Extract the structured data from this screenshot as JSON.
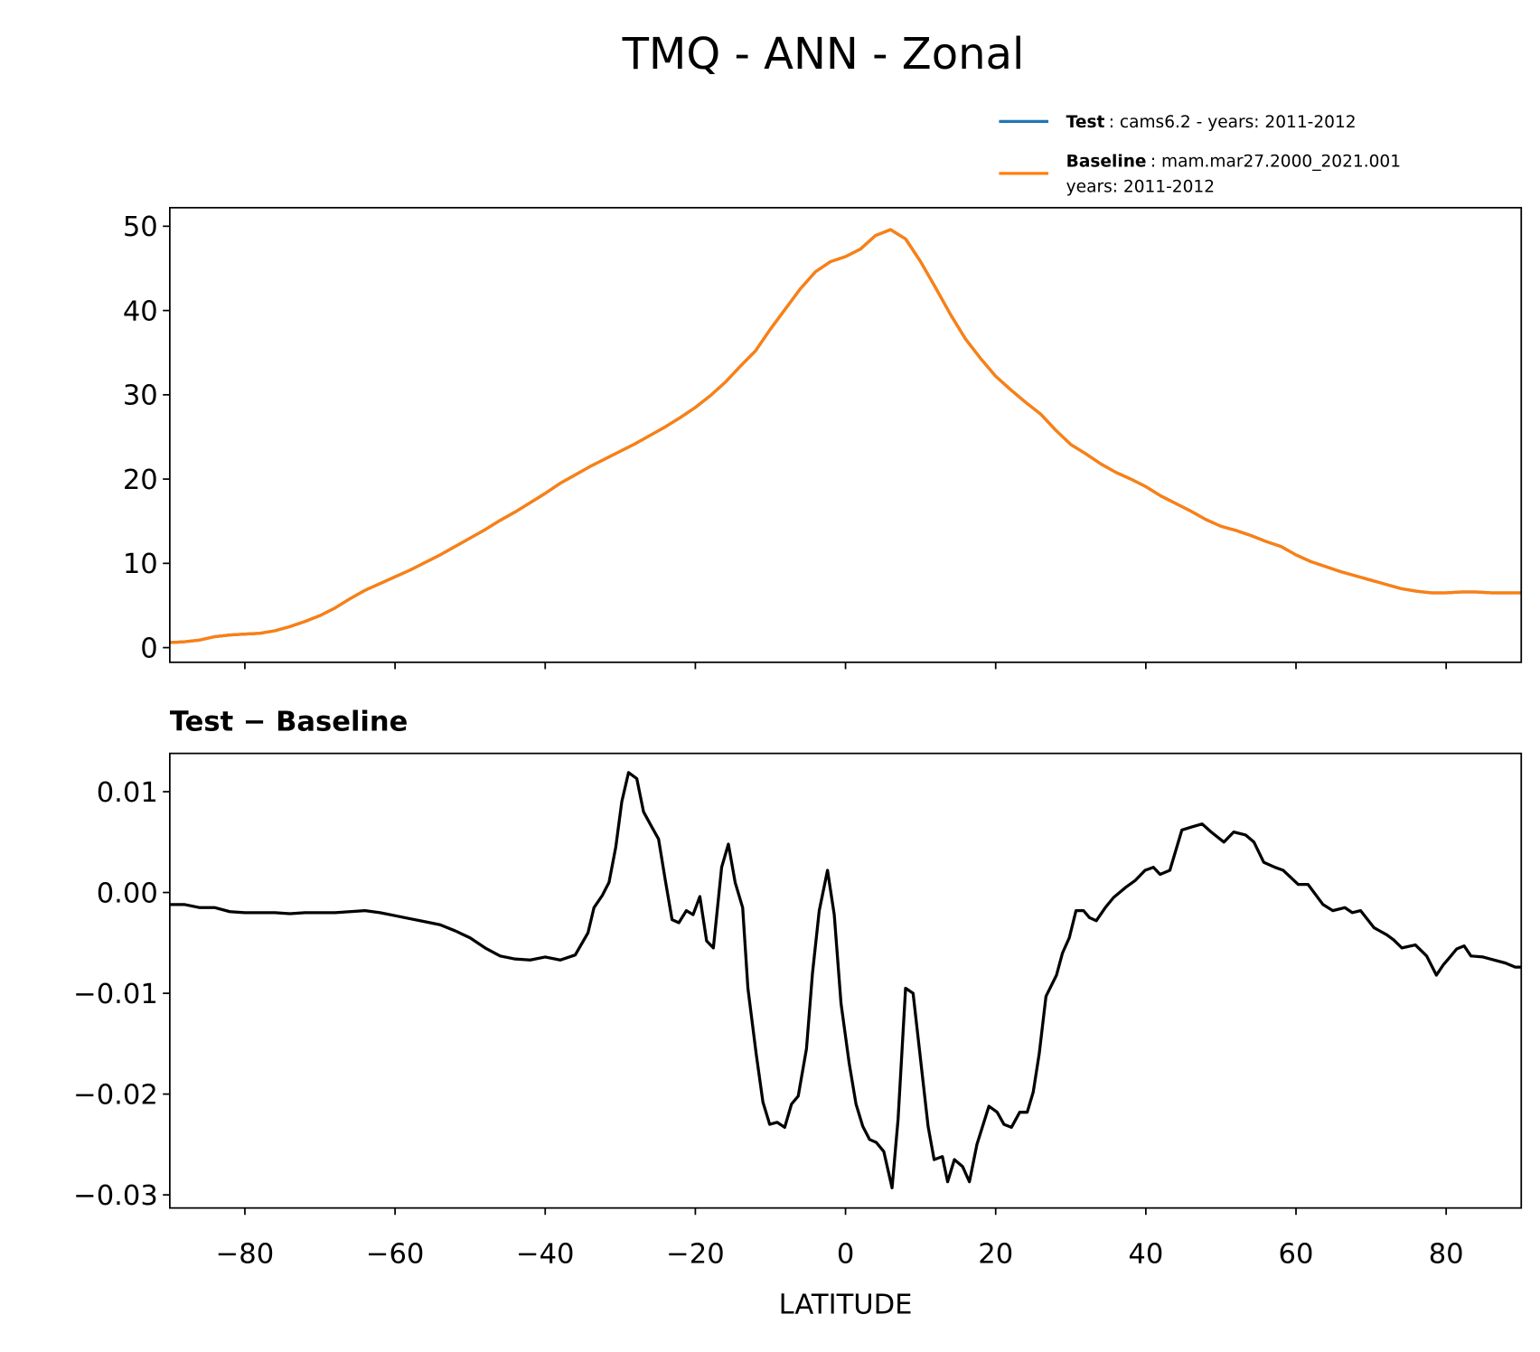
{
  "title": "TMQ - ANN - Zonal",
  "chart_data": [
    {
      "type": "line",
      "x": [
        -90,
        -88,
        -86,
        -84,
        -82,
        -80,
        -78,
        -76,
        -74,
        -72,
        -70,
        -68,
        -66,
        -64,
        -62,
        -60,
        -58,
        -56,
        -54,
        -52,
        -50,
        -48,
        -46,
        -44,
        -42,
        -40,
        -38,
        -36,
        -34,
        -32,
        -30,
        -28,
        -26,
        -24,
        -22,
        -20,
        -18,
        -16,
        -14,
        -12,
        -10,
        -8,
        -6,
        -4,
        -2,
        0,
        2,
        4,
        6,
        8,
        10,
        12,
        14,
        16,
        18,
        20,
        22,
        24,
        26,
        28,
        30,
        32,
        34,
        36,
        38,
        40,
        42,
        44,
        46,
        48,
        50,
        52,
        54,
        56,
        58,
        60,
        62,
        64,
        66,
        68,
        70,
        72,
        74,
        76,
        78,
        80,
        82,
        84,
        86,
        88,
        90
      ],
      "series": [
        {
          "name": "Test",
          "description": [
            ": cams6.2 - years: 2011-2012"
          ],
          "color": "#1f77b4",
          "values": [
            0.6,
            0.7,
            0.9,
            1.3,
            1.5,
            1.6,
            1.7,
            2.0,
            2.5,
            3.1,
            3.8,
            4.7,
            5.8,
            6.8,
            7.6,
            8.4,
            9.2,
            10.1,
            11.0,
            12.0,
            13.0,
            14.0,
            15.1,
            16.1,
            17.2,
            18.3,
            19.5,
            20.5,
            21.5,
            22.4,
            23.3,
            24.2,
            25.2,
            26.2,
            27.3,
            28.5,
            29.9,
            31.5,
            33.4,
            35.2,
            37.8,
            40.2,
            42.6,
            44.6,
            45.8,
            46.4,
            47.3,
            48.9,
            49.6,
            48.5,
            45.8,
            42.7,
            39.5,
            36.6,
            34.3,
            32.2,
            30.6,
            29.1,
            27.7,
            25.8,
            24.1,
            23.0,
            21.8,
            20.8,
            20.0,
            19.1,
            18.0,
            17.1,
            16.2,
            15.2,
            14.4,
            13.9,
            13.3,
            12.6,
            12.0,
            11.0,
            10.2,
            9.6,
            9.0,
            8.5,
            8.0,
            7.5,
            7.0,
            6.7,
            6.5,
            6.5,
            6.6,
            6.6,
            6.5,
            6.5,
            6.5
          ]
        },
        {
          "name": "Baseline",
          "description": [
            ": mam.mar27.2000_2021.001",
            "years: 2011-2012"
          ],
          "color": "#ff7f0e",
          "values": [
            0.6,
            0.7,
            0.9,
            1.3,
            1.5,
            1.6,
            1.7,
            2.0,
            2.5,
            3.1,
            3.8,
            4.7,
            5.8,
            6.8,
            7.6,
            8.4,
            9.2,
            10.1,
            11.0,
            12.0,
            13.0,
            14.0,
            15.1,
            16.1,
            17.2,
            18.3,
            19.5,
            20.5,
            21.5,
            22.4,
            23.3,
            24.2,
            25.2,
            26.2,
            27.3,
            28.5,
            29.9,
            31.5,
            33.4,
            35.2,
            37.8,
            40.2,
            42.6,
            44.6,
            45.8,
            46.4,
            47.3,
            48.9,
            49.6,
            48.5,
            45.8,
            42.7,
            39.5,
            36.6,
            34.3,
            32.2,
            30.6,
            29.1,
            27.7,
            25.8,
            24.1,
            23.0,
            21.8,
            20.8,
            20.0,
            19.1,
            18.0,
            17.1,
            16.2,
            15.2,
            14.4,
            13.9,
            13.3,
            12.6,
            12.0,
            11.0,
            10.2,
            9.6,
            9.0,
            8.5,
            8.0,
            7.5,
            7.0,
            6.7,
            6.5,
            6.5,
            6.6,
            6.6,
            6.5,
            6.5,
            6.5
          ]
        }
      ],
      "xlim": [
        -90,
        90
      ],
      "xticks": [
        -80,
        -60,
        -40,
        -20,
        0,
        20,
        40,
        60,
        80
      ],
      "ylim": [
        -1.74,
        52.2
      ],
      "yticks": [
        0,
        10,
        20,
        30,
        40,
        50
      ]
    },
    {
      "type": "line",
      "title": "Test − Baseline",
      "xlabel": "LATITUDE",
      "x": [
        -90,
        -88,
        -86,
        -84,
        -82,
        -80,
        -78,
        -76,
        -74,
        -72,
        -70,
        -68,
        -66,
        -64,
        -62,
        -60,
        -58,
        -56,
        -54,
        -52,
        -50,
        -48,
        -46,
        -44,
        -42,
        -40,
        -38,
        -36,
        -34.3,
        -33.5,
        -32.4,
        -31.5,
        -30.6,
        -29.8,
        -28.9,
        -27.8,
        -26.9,
        -25.8,
        -24.9,
        -24.0,
        -23.1,
        -22.2,
        -21.2,
        -20.3,
        -19.4,
        -18.5,
        -17.6,
        -16.5,
        -15.6,
        -14.7,
        -13.7,
        -13.0,
        -11.9,
        -11.0,
        -10.1,
        -9.1,
        -8.1,
        -7.2,
        -6.3,
        -5.2,
        -4.4,
        -3.5,
        -2.4,
        -1.5,
        -0.6,
        0.5,
        1.4,
        2.3,
        3.2,
        4.1,
        5.1,
        6.2,
        7.0,
        8.0,
        9.0,
        11.0,
        11.8,
        12.9,
        13.6,
        14.5,
        15.6,
        16.5,
        17.5,
        19.1,
        20.2,
        21.1,
        22.1,
        23.2,
        24.2,
        25.0,
        25.8,
        26.7,
        28.1,
        28.9,
        29.8,
        30.7,
        31.7,
        32.5,
        33.4,
        34.6,
        35.7,
        37.3,
        38.6,
        39.9,
        41.0,
        41.9,
        43.2,
        44.8,
        46.1,
        47.5,
        48.7,
        50.4,
        51.7,
        53.3,
        54.4,
        55.7,
        57.2,
        58.3,
        60.3,
        61.6,
        63.6,
        64.9,
        66.5,
        67.5,
        68.6,
        70.4,
        72.1,
        73.0,
        74.1,
        75.9,
        77.4,
        78.7,
        79.6,
        80.4,
        81.4,
        82.4,
        83.3,
        84.9,
        85.9,
        87.9,
        89.2,
        90
      ],
      "series": [
        {
          "color": "#000000",
          "values": [
            -0.0012,
            -0.0012,
            -0.0015,
            -0.0015,
            -0.0019,
            -0.002,
            -0.002,
            -0.002,
            -0.0021,
            -0.002,
            -0.002,
            -0.002,
            -0.0019,
            -0.0018,
            -0.002,
            -0.0023,
            -0.0026,
            -0.0029,
            -0.0032,
            -0.0038,
            -0.0045,
            -0.0055,
            -0.0063,
            -0.0066,
            -0.0067,
            -0.0064,
            -0.0067,
            -0.0062,
            -0.004,
            -0.0015,
            -0.0003,
            0.001,
            0.0045,
            0.009,
            0.0119,
            0.0113,
            0.008,
            0.0065,
            0.0053,
            0.0012,
            -0.0027,
            -0.003,
            -0.0018,
            -0.0022,
            -0.0004,
            -0.0048,
            -0.0055,
            0.0025,
            0.0048,
            0.001,
            -0.0015,
            -0.0095,
            -0.016,
            -0.0208,
            -0.023,
            -0.0228,
            -0.0233,
            -0.021,
            -0.0202,
            -0.0155,
            -0.008,
            -0.0018,
            0.0022,
            -0.0022,
            -0.011,
            -0.017,
            -0.021,
            -0.0232,
            -0.0245,
            -0.0248,
            -0.0257,
            -0.0293,
            -0.0225,
            -0.0095,
            -0.01,
            -0.0232,
            -0.0265,
            -0.0262,
            -0.0287,
            -0.0265,
            -0.0272,
            -0.0287,
            -0.025,
            -0.0212,
            -0.0218,
            -0.023,
            -0.0233,
            -0.0218,
            -0.0218,
            -0.0198,
            -0.016,
            -0.0103,
            -0.0082,
            -0.006,
            -0.0045,
            -0.0018,
            -0.0018,
            -0.0025,
            -0.0028,
            -0.0015,
            -0.0005,
            0.0005,
            0.0012,
            0.0022,
            0.0025,
            0.0018,
            0.0022,
            0.0062,
            0.0065,
            0.0068,
            0.006,
            0.005,
            0.006,
            0.0057,
            0.005,
            0.003,
            0.0025,
            0.0022,
            0.0008,
            0.0008,
            -0.0012,
            -0.0018,
            -0.0015,
            -0.002,
            -0.0018,
            -0.0035,
            -0.0042,
            -0.0047,
            -0.0055,
            -0.0052,
            -0.0063,
            -0.0082,
            -0.0072,
            -0.0065,
            -0.0056,
            -0.0053,
            -0.0063,
            -0.0064,
            -0.0066,
            -0.007,
            -0.0074,
            -0.0074
          ]
        }
      ],
      "xlim": [
        -90,
        90
      ],
      "xticks": [
        {
          "value": -80,
          "label": "−80"
        },
        {
          "value": -60,
          "label": "−60"
        },
        {
          "value": -40,
          "label": "−40"
        },
        {
          "value": -20,
          "label": "−20"
        },
        0,
        20,
        40,
        60,
        80
      ],
      "ylim": [
        -0.0313,
        0.0138
      ],
      "yticks": [
        {
          "value": -0.03,
          "label": "−0.03"
        },
        {
          "value": -0.02,
          "label": "−0.02"
        },
        {
          "value": -0.01,
          "label": "−0.01"
        },
        {
          "value": 0,
          "label": "0.00"
        },
        0.01
      ]
    }
  ]
}
